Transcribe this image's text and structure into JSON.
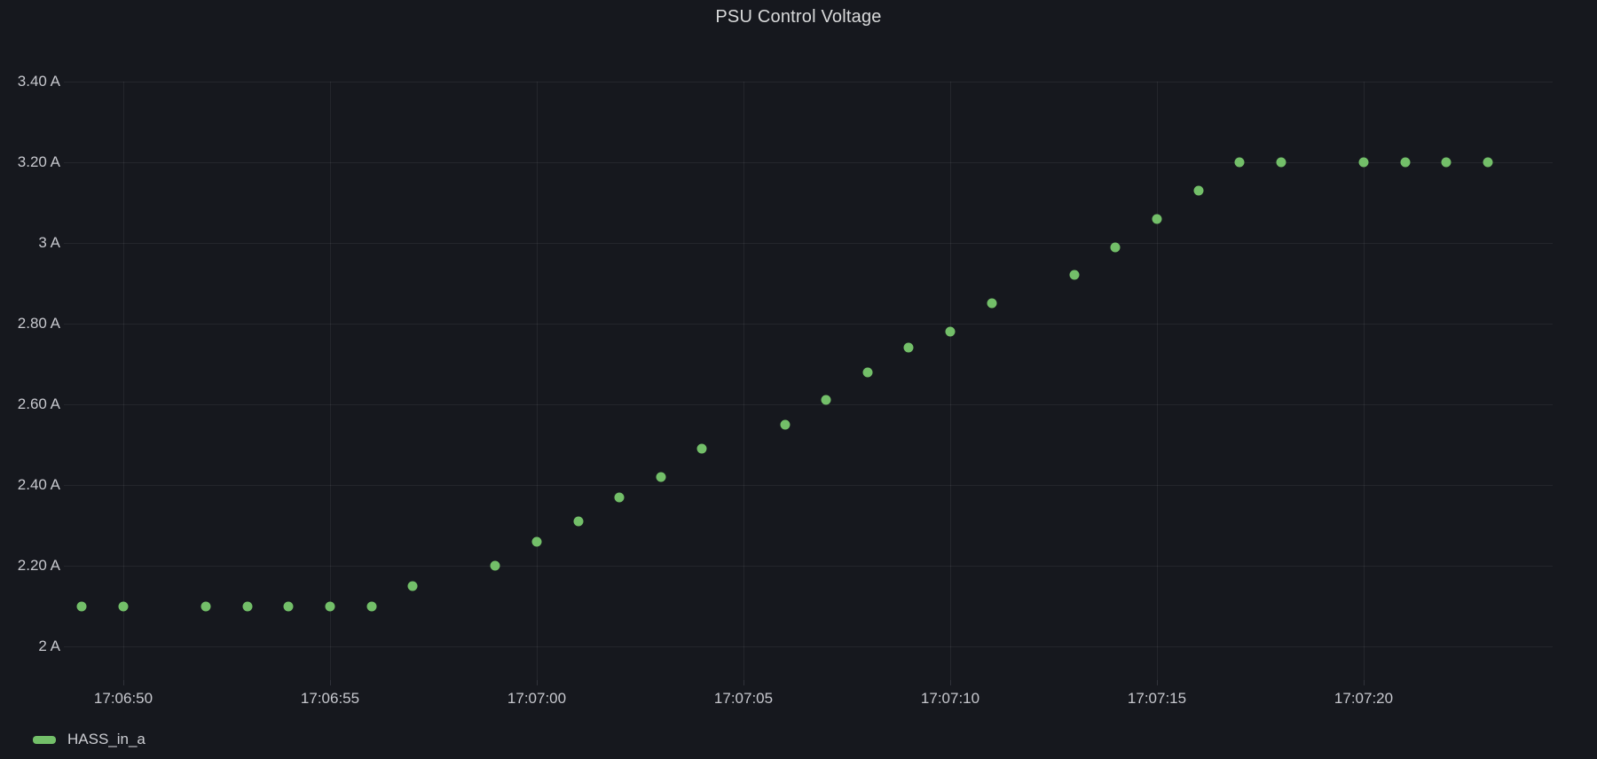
{
  "panel": {
    "title": "PSU Control Voltage"
  },
  "legend": {
    "items": [
      {
        "label": "HASS_in_a",
        "color": "#73BF69"
      }
    ]
  },
  "colors": {
    "background": "#16181e",
    "title_text": "#d8d9da",
    "axis_text": "#c7c8ce",
    "gridline": "rgba(204,204,220,0.08)",
    "series_green": "#73BF69"
  },
  "chart_data": {
    "type": "scatter",
    "title": "PSU Control Voltage",
    "xlabel": "",
    "ylabel": "",
    "y_unit": "A",
    "grid": true,
    "legend_position": "bottom-left",
    "ylim": [
      1.92,
      3.4
    ],
    "xlim_offsets_s": [
      -1.4,
      34.6
    ],
    "x_tick_labels": [
      "17:06:50",
      "17:06:55",
      "17:07:00",
      "17:07:05",
      "17:07:10",
      "17:07:15",
      "17:07:20"
    ],
    "x_tick_offsets_s": [
      0,
      5,
      10,
      15,
      20,
      25,
      30
    ],
    "y_ticks": [
      {
        "value": 3.4,
        "label": "3.40 A"
      },
      {
        "value": 3.2,
        "label": "3.20 A"
      },
      {
        "value": 3.0,
        "label": "3 A"
      },
      {
        "value": 2.8,
        "label": "2.80 A"
      },
      {
        "value": 2.6,
        "label": "2.60 A"
      },
      {
        "value": 2.4,
        "label": "2.40 A"
      },
      {
        "value": 2.2,
        "label": "2.20 A"
      },
      {
        "value": 2.0,
        "label": "2 A"
      }
    ],
    "series": [
      {
        "name": "HASS_in_a",
        "color": "#73BF69",
        "points": [
          {
            "time": "17:06:49",
            "offset_s": -1,
            "value": 2.1
          },
          {
            "time": "17:06:50",
            "offset_s": 0,
            "value": 2.1
          },
          {
            "time": "17:06:52",
            "offset_s": 2,
            "value": 2.1
          },
          {
            "time": "17:06:53",
            "offset_s": 3,
            "value": 2.1
          },
          {
            "time": "17:06:54",
            "offset_s": 4,
            "value": 2.1
          },
          {
            "time": "17:06:55",
            "offset_s": 5,
            "value": 2.1
          },
          {
            "time": "17:06:56",
            "offset_s": 6,
            "value": 2.1
          },
          {
            "time": "17:06:57",
            "offset_s": 7,
            "value": 2.15
          },
          {
            "time": "17:06:59",
            "offset_s": 9,
            "value": 2.2
          },
          {
            "time": "17:07:00",
            "offset_s": 10,
            "value": 2.26
          },
          {
            "time": "17:07:01",
            "offset_s": 11,
            "value": 2.31
          },
          {
            "time": "17:07:02",
            "offset_s": 12,
            "value": 2.37
          },
          {
            "time": "17:07:03",
            "offset_s": 13,
            "value": 2.42
          },
          {
            "time": "17:07:04",
            "offset_s": 14,
            "value": 2.49
          },
          {
            "time": "17:07:06",
            "offset_s": 16,
            "value": 2.55
          },
          {
            "time": "17:07:07",
            "offset_s": 17,
            "value": 2.61
          },
          {
            "time": "17:07:08",
            "offset_s": 18,
            "value": 2.68
          },
          {
            "time": "17:07:09",
            "offset_s": 19,
            "value": 2.74
          },
          {
            "time": "17:07:10",
            "offset_s": 20,
            "value": 2.78
          },
          {
            "time": "17:07:11",
            "offset_s": 21,
            "value": 2.85
          },
          {
            "time": "17:07:13",
            "offset_s": 23,
            "value": 2.92
          },
          {
            "time": "17:07:14",
            "offset_s": 24,
            "value": 2.99
          },
          {
            "time": "17:07:15",
            "offset_s": 25,
            "value": 3.06
          },
          {
            "time": "17:07:16",
            "offset_s": 26,
            "value": 3.13
          },
          {
            "time": "17:07:17",
            "offset_s": 27,
            "value": 3.2
          },
          {
            "time": "17:07:18",
            "offset_s": 28,
            "value": 3.2
          },
          {
            "time": "17:07:20",
            "offset_s": 30,
            "value": 3.2
          },
          {
            "time": "17:07:21",
            "offset_s": 31,
            "value": 3.2
          },
          {
            "time": "17:07:22",
            "offset_s": 32,
            "value": 3.2
          },
          {
            "time": "17:07:23",
            "offset_s": 33,
            "value": 3.2
          }
        ]
      }
    ]
  }
}
